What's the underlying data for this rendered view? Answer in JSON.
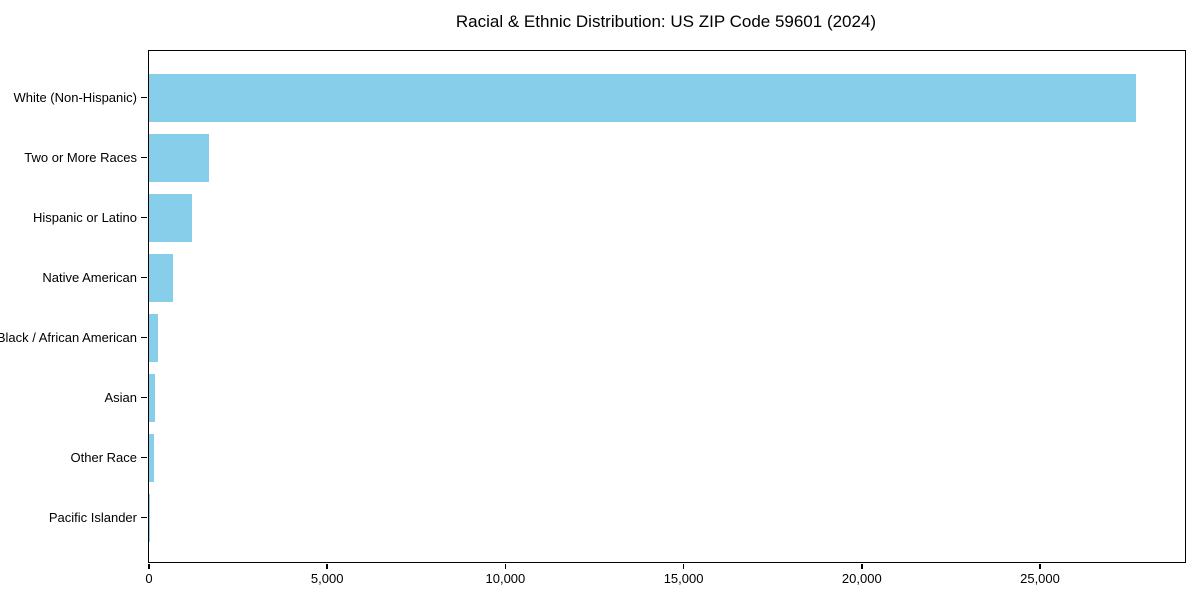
{
  "title": "Racial & Ethnic Distribution: US ZIP Code 59601 (2024)",
  "chart_data": {
    "type": "bar",
    "orientation": "horizontal",
    "title": "Racial & Ethnic Distribution: US ZIP Code 59601 (2024)",
    "categories": [
      "White (Non-Hispanic)",
      "Two or More Races",
      "Hispanic or Latino",
      "Native American",
      "Black / African American",
      "Asian",
      "Other Race",
      "Pacific Islander"
    ],
    "values": [
      27700,
      1690,
      1200,
      665,
      255,
      170,
      130,
      10
    ],
    "xlabel": "",
    "ylabel": "",
    "xlim": [
      0,
      29068
    ],
    "xticks": [
      0,
      5000,
      10000,
      15000,
      20000,
      25000
    ],
    "xtick_labels": [
      "0",
      "5,000",
      "10,000",
      "15,000",
      "20,000",
      "25,000"
    ],
    "bar_color": "#87CEEB",
    "axis_color": "#000000",
    "grid": false,
    "legend": null
  }
}
